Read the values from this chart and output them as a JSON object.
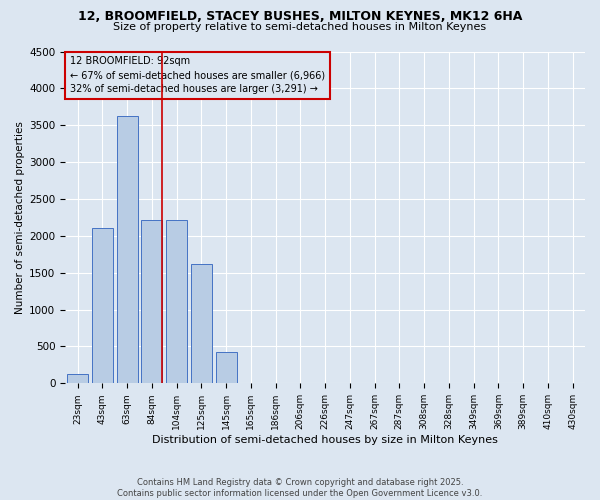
{
  "title": "12, BROOMFIELD, STACEY BUSHES, MILTON KEYNES, MK12 6HA",
  "subtitle": "Size of property relative to semi-detached houses in Milton Keynes",
  "xlabel": "Distribution of semi-detached houses by size in Milton Keynes",
  "ylabel": "Number of semi-detached properties",
  "categories": [
    "23sqm",
    "43sqm",
    "63sqm",
    "84sqm",
    "104sqm",
    "125sqm",
    "145sqm",
    "165sqm",
    "186sqm",
    "206sqm",
    "226sqm",
    "247sqm",
    "267sqm",
    "287sqm",
    "308sqm",
    "328sqm",
    "349sqm",
    "369sqm",
    "389sqm",
    "410sqm",
    "430sqm"
  ],
  "values": [
    130,
    2100,
    3620,
    2220,
    2220,
    1620,
    430,
    0,
    0,
    0,
    0,
    0,
    0,
    0,
    0,
    0,
    0,
    0,
    0,
    0,
    0
  ],
  "annotation_title": "12 BROOMFIELD: 92sqm",
  "annotation_line1": "← 67% of semi-detached houses are smaller (6,966)",
  "annotation_line2": "32% of semi-detached houses are larger (3,291) →",
  "bar_color": "#b8cce4",
  "bar_edge_color": "#4472c4",
  "redline_color": "#cc0000",
  "annotation_box_edge": "#cc0000",
  "background_color": "#dce6f1",
  "ylim": [
    0,
    4500
  ],
  "redline_x": 3.4,
  "footer": "Contains HM Land Registry data © Crown copyright and database right 2025.\nContains public sector information licensed under the Open Government Licence v3.0."
}
